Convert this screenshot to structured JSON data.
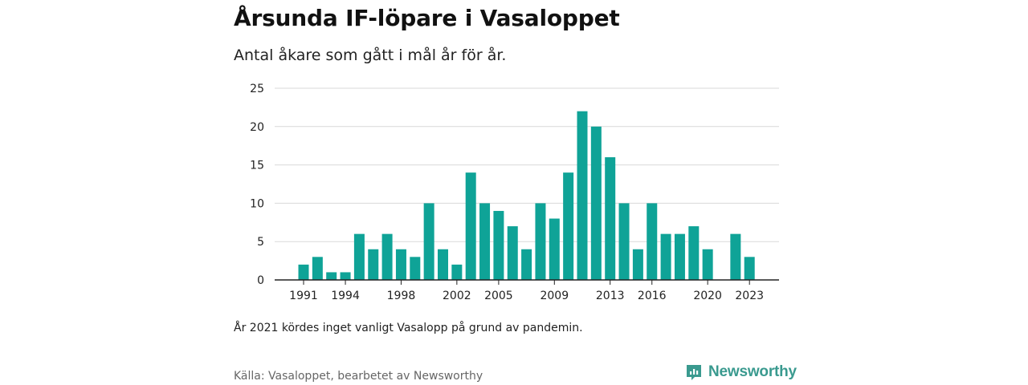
{
  "title": "Årsunda IF-löpare i Vasaloppet",
  "subtitle": "Antal åkare som gått i mål år för år.",
  "note": "År 2021 kördes inget vanligt Vasalopp på grund av pandemin.",
  "source": "Källa: Vasaloppet, bearbetet av Newsworthy",
  "brand": {
    "name": "Newsworthy",
    "icon": "newsworthy-logo-icon",
    "color": "#3a9a8f"
  },
  "chart_data": {
    "type": "bar",
    "x": [
      1991,
      1992,
      1993,
      1994,
      1995,
      1996,
      1997,
      1998,
      1999,
      2000,
      2001,
      2002,
      2003,
      2004,
      2005,
      2006,
      2007,
      2008,
      2009,
      2010,
      2011,
      2012,
      2013,
      2014,
      2015,
      2016,
      2017,
      2018,
      2019,
      2020,
      2021,
      2022,
      2023
    ],
    "values": [
      2,
      3,
      1,
      1,
      6,
      4,
      6,
      4,
      3,
      10,
      4,
      2,
      14,
      10,
      9,
      7,
      4,
      10,
      8,
      14,
      22,
      20,
      16,
      10,
      4,
      10,
      6,
      6,
      7,
      4,
      null,
      6,
      3
    ],
    "x_ticks": [
      1991,
      1994,
      1998,
      2002,
      2005,
      2009,
      2013,
      2016,
      2020,
      2023
    ],
    "y_ticks": [
      0,
      5,
      10,
      15,
      20,
      25
    ],
    "ylim": [
      0,
      25
    ],
    "grid": true,
    "bar_color": "#0fa397"
  }
}
